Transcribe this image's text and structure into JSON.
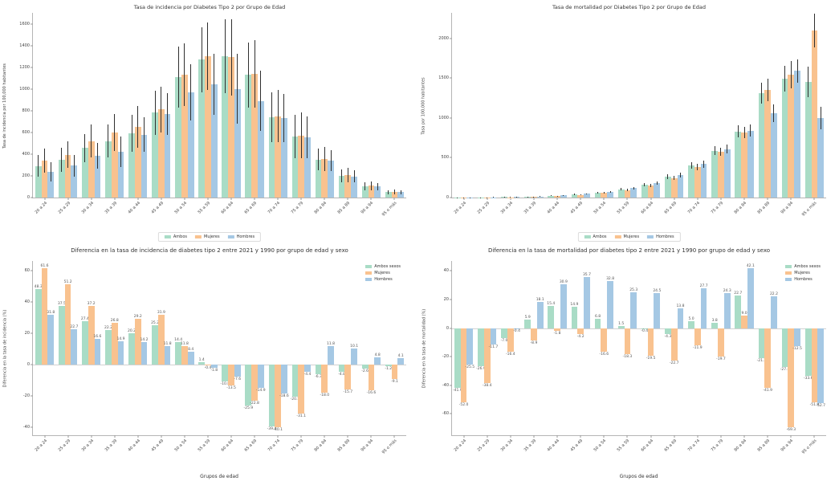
{
  "figure": {
    "background": "#ffffff"
  },
  "palette": {
    "ambos": "#a9dcc6",
    "mujeres": "#f9c28f",
    "hombres": "#a5c8e4",
    "error_bar": "#2f2f2f"
  },
  "chart_data": [
    {
      "type": "bar",
      "title": "Tasa de incidencia por Diabetes Tipo 2 por Grupo de Edad",
      "ylabel": "Tasa de incidencia por 100,000 habitantes",
      "xlabel": "",
      "legend": "bottom",
      "show_value_labels": false,
      "ylim": [
        0,
        1700
      ],
      "yticks": [
        0,
        200,
        400,
        600,
        800,
        1000,
        1200,
        1400,
        1600
      ],
      "categories": [
        "20 a 24",
        "25 a 29",
        "30 a 34",
        "35 a 39",
        "40 a 44",
        "45 a 49",
        "50 a 54",
        "55 a 59",
        "60 a 64",
        "65 a 69",
        "70 a 74",
        "75 a 79",
        "80 a 84",
        "85 a 89",
        "90 a 94",
        "95 o más"
      ],
      "series": [
        {
          "name": "Ambos",
          "color": "#a9dcc6",
          "values": [
            290,
            345,
            455,
            520,
            590,
            780,
            1110,
            1270,
            1300,
            1130,
            740,
            560,
            350,
            200,
            105,
            50
          ],
          "errors": [
            100,
            110,
            130,
            150,
            170,
            200,
            280,
            300,
            340,
            300,
            230,
            200,
            100,
            60,
            35,
            20
          ]
        },
        {
          "name": "Mujeres",
          "color": "#f9c28f",
          "values": [
            340,
            395,
            520,
            600,
            650,
            810,
            1130,
            1300,
            1290,
            1140,
            750,
            570,
            355,
            205,
            110,
            55
          ],
          "errors": [
            110,
            120,
            150,
            170,
            190,
            210,
            290,
            310,
            350,
            310,
            240,
            210,
            110,
            65,
            40,
            22
          ]
        },
        {
          "name": "Hombres",
          "color": "#a5c8e4",
          "values": [
            235,
            295,
            385,
            420,
            580,
            770,
            970,
            1040,
            1000,
            890,
            730,
            555,
            340,
            195,
            100,
            50
          ],
          "errors": [
            90,
            100,
            120,
            140,
            160,
            190,
            260,
            280,
            320,
            280,
            220,
            190,
            95,
            55,
            30,
            18
          ]
        }
      ]
    },
    {
      "type": "bar",
      "title": "Tasa de mortalidad por Diabetes Tipo 2 por Grupo de Edad",
      "ylabel": "Tasa por 100,000 habitantes",
      "xlabel": "",
      "legend": "bottom",
      "show_value_labels": false,
      "ylim": [
        0,
        2320
      ],
      "yticks": [
        0,
        500,
        1000,
        1500,
        2000
      ],
      "categories": [
        "20 a 24",
        "25 a 29",
        "30 a 34",
        "35 a 39",
        "40 a 44",
        "45 a 49",
        "50 a 54",
        "55 a 59",
        "60 a 64",
        "65 a 69",
        "70 a 74",
        "75 a 79",
        "80 a 84",
        "85 a 89",
        "90 a 94",
        "95 o más"
      ],
      "series": [
        {
          "name": "Ambos",
          "color": "#a9dcc6",
          "values": [
            2,
            3,
            6,
            12,
            22,
            40,
            65,
            105,
            165,
            260,
            400,
            590,
            830,
            1310,
            1490,
            1450
          ],
          "errors": [
            1,
            1,
            2,
            3,
            5,
            7,
            10,
            14,
            20,
            28,
            40,
            55,
            75,
            130,
            160,
            190
          ]
        },
        {
          "name": "Mujeres",
          "color": "#f9c28f",
          "values": [
            2,
            3,
            5,
            10,
            19,
            35,
            58,
            95,
            150,
            245,
            385,
            575,
            820,
            1350,
            1540,
            2100
          ],
          "errors": [
            1,
            1,
            2,
            3,
            4,
            6,
            9,
            13,
            18,
            26,
            38,
            52,
            72,
            140,
            170,
            210
          ]
        },
        {
          "name": "Hombres",
          "color": "#a5c8e4",
          "values": [
            3,
            4,
            7,
            14,
            26,
            46,
            74,
            118,
            182,
            280,
            420,
            610,
            840,
            1060,
            1590,
            1000
          ],
          "errors": [
            1,
            2,
            2,
            4,
            5,
            8,
            11,
            15,
            22,
            30,
            42,
            58,
            78,
            110,
            150,
            140
          ]
        }
      ]
    },
    {
      "type": "bar",
      "title": "Diferencia en la tasa de incidencia de diabetes tipo 2 entre 2021 y 1990 por grupo de edad y sexo",
      "ylabel": "Diferencia en la tasa de incidencia (%)",
      "xlabel": "Grupos de edad",
      "legend": "inside",
      "show_value_labels": true,
      "ylim": [
        -45,
        66
      ],
      "yticks": [
        -40,
        -20,
        0,
        20,
        40,
        60
      ],
      "categories": [
        "20 a 24",
        "25 a 29",
        "30 a 34",
        "35 a 39",
        "40 a 44",
        "45 a 49",
        "50 a 54",
        "55 a 59",
        "60 a 64",
        "65 a 69",
        "70 a 74",
        "75 a 79",
        "80 a 84",
        "85 a 89",
        "90 a 94",
        "95 o más"
      ],
      "series": [
        {
          "name": "Ambos sexos",
          "color": "#a9dcc6",
          "values": [
            48.3,
            37.5,
            27.4,
            22.2,
            20.2,
            25.2,
            14.4,
            1.4,
            -10.8,
            -25.9,
            -39.4,
            -20.5,
            -6.3,
            -4.8,
            -2.6,
            -1.2
          ]
        },
        {
          "name": "Mujeres",
          "color": "#f9c28f",
          "values": [
            61.6,
            51.2,
            37.2,
            26.8,
            29.2,
            31.9,
            11.8,
            -0.4,
            -13.5,
            -22.8,
            -40.1,
            -31.1,
            -18.0,
            -15.7,
            -16.6,
            -9.1
          ]
        },
        {
          "name": "Hombres",
          "color": "#a5c8e4",
          "values": [
            31.8,
            22.7,
            16.6,
            14.9,
            14.2,
            11.8,
            8.4,
            -1.8,
            -7.6,
            -14.9,
            -18.6,
            -4.4,
            11.8,
            10.1,
            4.8,
            4.1
          ]
        }
      ]
    },
    {
      "type": "bar",
      "title": "Diferencia en la tasa de mortalidad por diabetes tipo 2 entre 2021 y 1990 por grupo de edad y sexo",
      "ylabel": "Diferencia en la tasa de mortalidad (%)",
      "xlabel": "Grupos de edad",
      "legend": "inside",
      "show_value_labels": true,
      "ylim": [
        -75,
        47
      ],
      "yticks": [
        -60,
        -40,
        -20,
        0,
        20,
        40
      ],
      "categories": [
        "20 a 24",
        "25 a 29",
        "30 a 34",
        "35 a 39",
        "40 a 44",
        "45 a 49",
        "50 a 54",
        "55 a 59",
        "60 a 64",
        "65 a 69",
        "70 a 74",
        "75 a 79",
        "80 a 84",
        "85 a 89",
        "90 a 94",
        "95 o más"
      ],
      "series": [
        {
          "name": "Ambos sexos",
          "color": "#a9dcc6",
          "values": [
            -41.9,
            -26.9,
            -7.0,
            5.9,
            15.4,
            14.9,
            6.8,
            1.5,
            -0.4,
            -4.3,
            5.0,
            3.8,
            22.7,
            -21.2,
            -27.4,
            -33.6
          ]
        },
        {
          "name": "Mujeres",
          "color": "#f9c28f",
          "values": [
            -52.0,
            -38.4,
            -16.4,
            -8.9,
            -1.8,
            -4.2,
            -16.6,
            -18.3,
            -19.5,
            -22.7,
            -11.9,
            -19.7,
            9.0,
            -41.9,
            -69.3,
            -51.9
          ]
        },
        {
          "name": "Hombres",
          "color": "#a5c8e4",
          "values": [
            -25.5,
            -11.7,
            -0.4,
            18.1,
            30.9,
            35.7,
            32.8,
            25.3,
            24.5,
            13.8,
            27.7,
            24.3,
            42.1,
            22.2,
            -12.5,
            -52.7
          ]
        }
      ]
    }
  ]
}
